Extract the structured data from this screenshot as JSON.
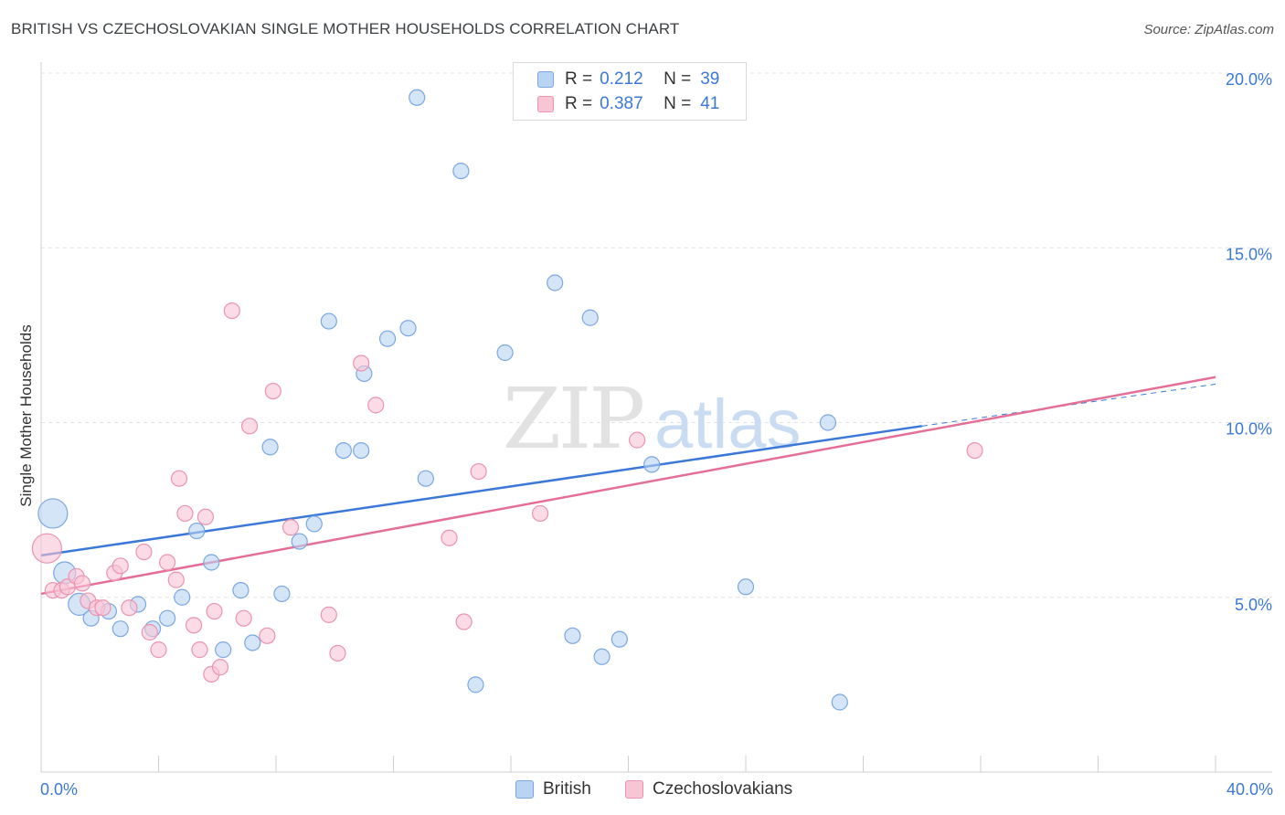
{
  "header": {
    "title": "BRITISH VS CZECHOSLOVAKIAN SINGLE MOTHER HOUSEHOLDS CORRELATION CHART",
    "source": "Source: ZipAtlas.com"
  },
  "watermark": "ZIPatlas",
  "legend": {
    "british": {
      "r_label": "R =",
      "r_value": "0.212",
      "n_label": "N =",
      "n_value": "39"
    },
    "czech": {
      "r_label": "R =",
      "r_value": "0.387",
      "n_label": "N =",
      "n_value": "41"
    }
  },
  "colors": {
    "british_fill": "#b9d3f3",
    "british_stroke": "#7aa7e0",
    "british_line": "#3b78d8",
    "czech_fill": "#f8c5d5",
    "czech_stroke": "#eb93af",
    "czech_line": "#e56e97",
    "tick_label": "#3b78d8",
    "grid": "#e3e3e3"
  },
  "chart_data": {
    "type": "scatter",
    "title": "BRITISH VS CZECHOSLOVAKIAN SINGLE MOTHER HOUSEHOLDS CORRELATION CHART",
    "ylabel": "Single Mother Households",
    "xlabel": "",
    "xlim": [
      0,
      40
    ],
    "ylim": [
      0,
      20.5
    ],
    "x_tick_labels": [
      "0.0%",
      "40.0%"
    ],
    "y_ticks": [
      5,
      10,
      15,
      20
    ],
    "y_tick_labels": [
      "5.0%",
      "10.0%",
      "15.0%",
      "20.0%"
    ],
    "grid": true,
    "legend_position": "top-center",
    "series": [
      {
        "name": "British",
        "points": [
          {
            "x": 0.4,
            "y": 7.4,
            "size": "large"
          },
          {
            "x": 0.8,
            "y": 5.7,
            "size": "medium"
          },
          {
            "x": 1.3,
            "y": 4.8,
            "size": "medium"
          },
          {
            "x": 1.7,
            "y": 4.4
          },
          {
            "x": 2.3,
            "y": 4.6
          },
          {
            "x": 2.7,
            "y": 4.1
          },
          {
            "x": 3.3,
            "y": 4.8
          },
          {
            "x": 3.8,
            "y": 4.1
          },
          {
            "x": 4.3,
            "y": 4.4
          },
          {
            "x": 4.8,
            "y": 5.0
          },
          {
            "x": 5.3,
            "y": 6.9
          },
          {
            "x": 5.8,
            "y": 6.0
          },
          {
            "x": 6.2,
            "y": 3.5
          },
          {
            "x": 6.8,
            "y": 5.2
          },
          {
            "x": 7.2,
            "y": 3.7
          },
          {
            "x": 7.8,
            "y": 9.3
          },
          {
            "x": 8.2,
            "y": 5.1
          },
          {
            "x": 8.8,
            "y": 6.6
          },
          {
            "x": 9.3,
            "y": 7.1
          },
          {
            "x": 9.8,
            "y": 12.9
          },
          {
            "x": 10.3,
            "y": 9.2
          },
          {
            "x": 10.9,
            "y": 9.2
          },
          {
            "x": 11.0,
            "y": 11.4
          },
          {
            "x": 11.8,
            "y": 12.4
          },
          {
            "x": 12.5,
            "y": 12.7
          },
          {
            "x": 12.8,
            "y": 19.3
          },
          {
            "x": 13.1,
            "y": 8.4
          },
          {
            "x": 14.3,
            "y": 17.2
          },
          {
            "x": 14.8,
            "y": 2.5
          },
          {
            "x": 15.8,
            "y": 12.0
          },
          {
            "x": 17.5,
            "y": 14.0
          },
          {
            "x": 18.1,
            "y": 3.9
          },
          {
            "x": 18.7,
            "y": 13.0
          },
          {
            "x": 19.1,
            "y": 3.3
          },
          {
            "x": 19.7,
            "y": 3.8
          },
          {
            "x": 20.8,
            "y": 8.8
          },
          {
            "x": 24.0,
            "y": 5.3
          },
          {
            "x": 26.8,
            "y": 10.0
          },
          {
            "x": 27.2,
            "y": 2.0
          }
        ]
      },
      {
        "name": "Czechoslovakians",
        "points": [
          {
            "x": 0.2,
            "y": 6.4,
            "size": "large"
          },
          {
            "x": 0.4,
            "y": 5.2
          },
          {
            "x": 0.7,
            "y": 5.2
          },
          {
            "x": 0.9,
            "y": 5.3
          },
          {
            "x": 1.2,
            "y": 5.6
          },
          {
            "x": 1.4,
            "y": 5.4
          },
          {
            "x": 1.6,
            "y": 4.9
          },
          {
            "x": 1.9,
            "y": 4.7
          },
          {
            "x": 2.1,
            "y": 4.7
          },
          {
            "x": 2.5,
            "y": 5.7
          },
          {
            "x": 2.7,
            "y": 5.9
          },
          {
            "x": 3.0,
            "y": 4.7
          },
          {
            "x": 3.5,
            "y": 6.3
          },
          {
            "x": 3.7,
            "y": 4.0
          },
          {
            "x": 4.0,
            "y": 3.5
          },
          {
            "x": 4.3,
            "y": 6.0
          },
          {
            "x": 4.6,
            "y": 5.5
          },
          {
            "x": 4.9,
            "y": 7.4
          },
          {
            "x": 5.2,
            "y": 4.2
          },
          {
            "x": 5.4,
            "y": 3.5
          },
          {
            "x": 5.6,
            "y": 7.3
          },
          {
            "x": 5.8,
            "y": 2.8
          },
          {
            "x": 5.9,
            "y": 4.6
          },
          {
            "x": 6.1,
            "y": 3.0
          },
          {
            "x": 6.5,
            "y": 13.2
          },
          {
            "x": 6.9,
            "y": 4.4
          },
          {
            "x": 7.1,
            "y": 9.9
          },
          {
            "x": 7.7,
            "y": 3.9
          },
          {
            "x": 7.9,
            "y": 10.9
          },
          {
            "x": 8.5,
            "y": 7.0
          },
          {
            "x": 9.8,
            "y": 4.5
          },
          {
            "x": 10.1,
            "y": 3.4
          },
          {
            "x": 10.9,
            "y": 11.7
          },
          {
            "x": 11.4,
            "y": 10.5
          },
          {
            "x": 13.9,
            "y": 6.7
          },
          {
            "x": 14.4,
            "y": 4.3
          },
          {
            "x": 14.9,
            "y": 8.6
          },
          {
            "x": 17.0,
            "y": 7.4
          },
          {
            "x": 20.3,
            "y": 9.5
          },
          {
            "x": 31.8,
            "y": 9.2
          },
          {
            "x": 4.7,
            "y": 8.4
          }
        ]
      }
    ],
    "trend_lines": [
      {
        "name": "British",
        "x": [
          0,
          30
        ],
        "y": [
          6.2,
          9.9
        ],
        "dashed_extension_to_x": 40,
        "dashed_end_y": 11.1
      },
      {
        "name": "Czechoslovakians",
        "x": [
          0,
          40
        ],
        "y": [
          5.1,
          11.3
        ]
      }
    ]
  }
}
